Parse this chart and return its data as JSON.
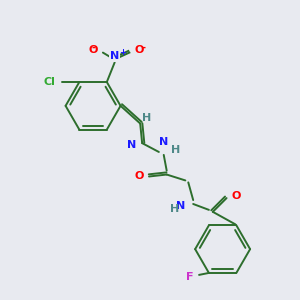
{
  "background_color": "#e8eaf0",
  "bond_color": "#2d6e2d",
  "atom_colors": {
    "N": "#1a1aff",
    "O": "#ff0000",
    "Cl": "#33aa33",
    "F": "#cc33cc",
    "H": "#4d8888"
  },
  "figsize": [
    3.0,
    3.0
  ],
  "dpi": 100
}
